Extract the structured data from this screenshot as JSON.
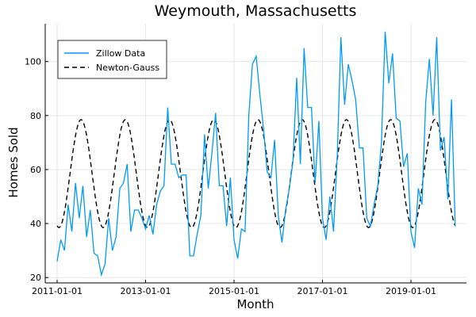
{
  "chart_data": {
    "type": "line",
    "title": "Weymouth, Massachusetts",
    "xlabel": "Month",
    "ylabel": "Homes Sold",
    "x_start": "2011-01-01",
    "x_ticks": [
      "2011-01-01",
      "2013-01-01",
      "2015-01-01",
      "2017-01-01",
      "2019-01-01"
    ],
    "y_ticks": [
      20,
      40,
      60,
      80,
      100
    ],
    "ylim": [
      18,
      114
    ],
    "grid": true,
    "legend_position": "top-left",
    "series": [
      {
        "name": "Zillow Data",
        "style": "solid",
        "color": "#009AFA",
        "values": [
          26,
          34,
          30,
          47,
          37,
          55,
          42,
          54,
          35,
          45,
          29,
          28,
          21,
          25,
          42,
          30,
          35,
          53,
          55,
          62,
          37,
          45,
          45,
          42,
          38,
          43,
          36,
          47,
          52,
          54,
          83,
          62,
          62,
          57,
          58,
          58,
          28,
          28,
          36,
          43,
          73,
          53,
          66,
          81,
          54,
          54,
          39,
          57,
          34,
          27,
          38,
          37,
          80,
          99,
          102,
          88,
          75,
          59,
          57,
          71,
          43,
          33,
          45,
          53,
          63,
          94,
          62,
          105,
          83,
          83,
          55,
          78,
          42,
          34,
          50,
          37,
          65,
          109,
          84,
          99,
          93,
          86,
          68,
          68,
          42,
          39,
          47,
          54,
          70,
          111,
          92,
          103,
          79,
          78,
          61,
          66,
          37,
          31,
          53,
          47,
          85,
          101,
          80,
          109,
          67,
          72,
          49,
          86,
          39
        ]
      },
      {
        "name": "Newton-Gauss",
        "style": "dashed",
        "color": "#000000",
        "amplitude": 20,
        "mean": 58.5,
        "period_months": 12,
        "peak_month": 6.5,
        "n": 109
      }
    ]
  }
}
